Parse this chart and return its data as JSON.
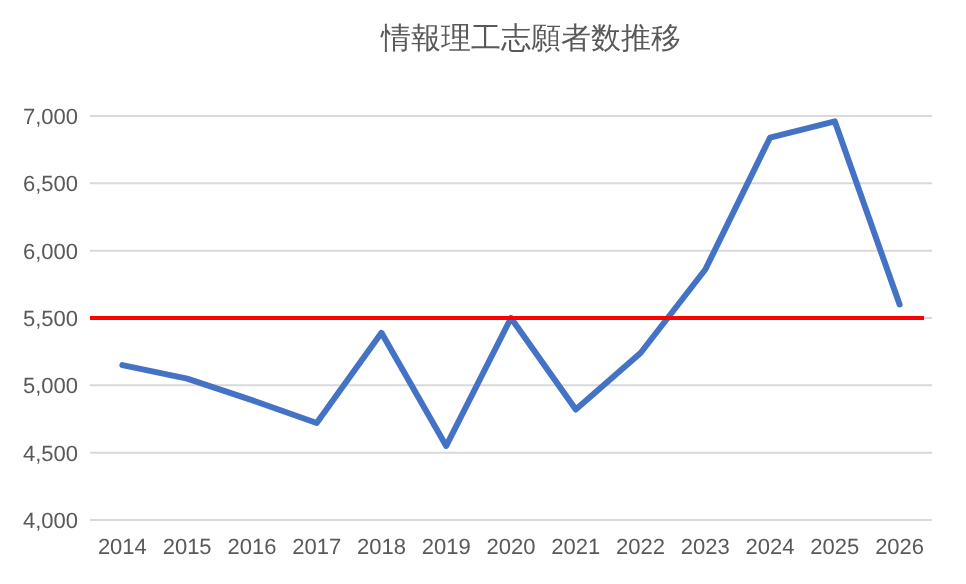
{
  "chart_data": {
    "type": "line",
    "title": "情報理工志願者数推移",
    "categories": [
      "2014",
      "2015",
      "2016",
      "2017",
      "2018",
      "2019",
      "2020",
      "2021",
      "2022",
      "2023",
      "2024",
      "2025",
      "2026"
    ],
    "series": [
      {
        "color": "#4472c4",
        "values": [
          5150,
          5050,
          4890,
          4720,
          5390,
          4550,
          5500,
          4820,
          5240,
          5860,
          6840,
          6960,
          5600
        ]
      }
    ],
    "ylim": [
      4000,
      7000
    ],
    "yticks": [
      {
        "value": 4000,
        "label": "4,000"
      },
      {
        "value": 4500,
        "label": "4,500"
      },
      {
        "value": 5000,
        "label": "5,000"
      },
      {
        "value": 5500,
        "label": "5,500"
      },
      {
        "value": 6000,
        "label": "6,000"
      },
      {
        "value": 6500,
        "label": "6,500"
      },
      {
        "value": 7000,
        "label": "7,000"
      }
    ],
    "grid": "y",
    "marker": "none",
    "line_style": "solid",
    "ref_lines": [
      {
        "axis": "y",
        "value": 5500,
        "color": "#ff0000"
      }
    ]
  }
}
